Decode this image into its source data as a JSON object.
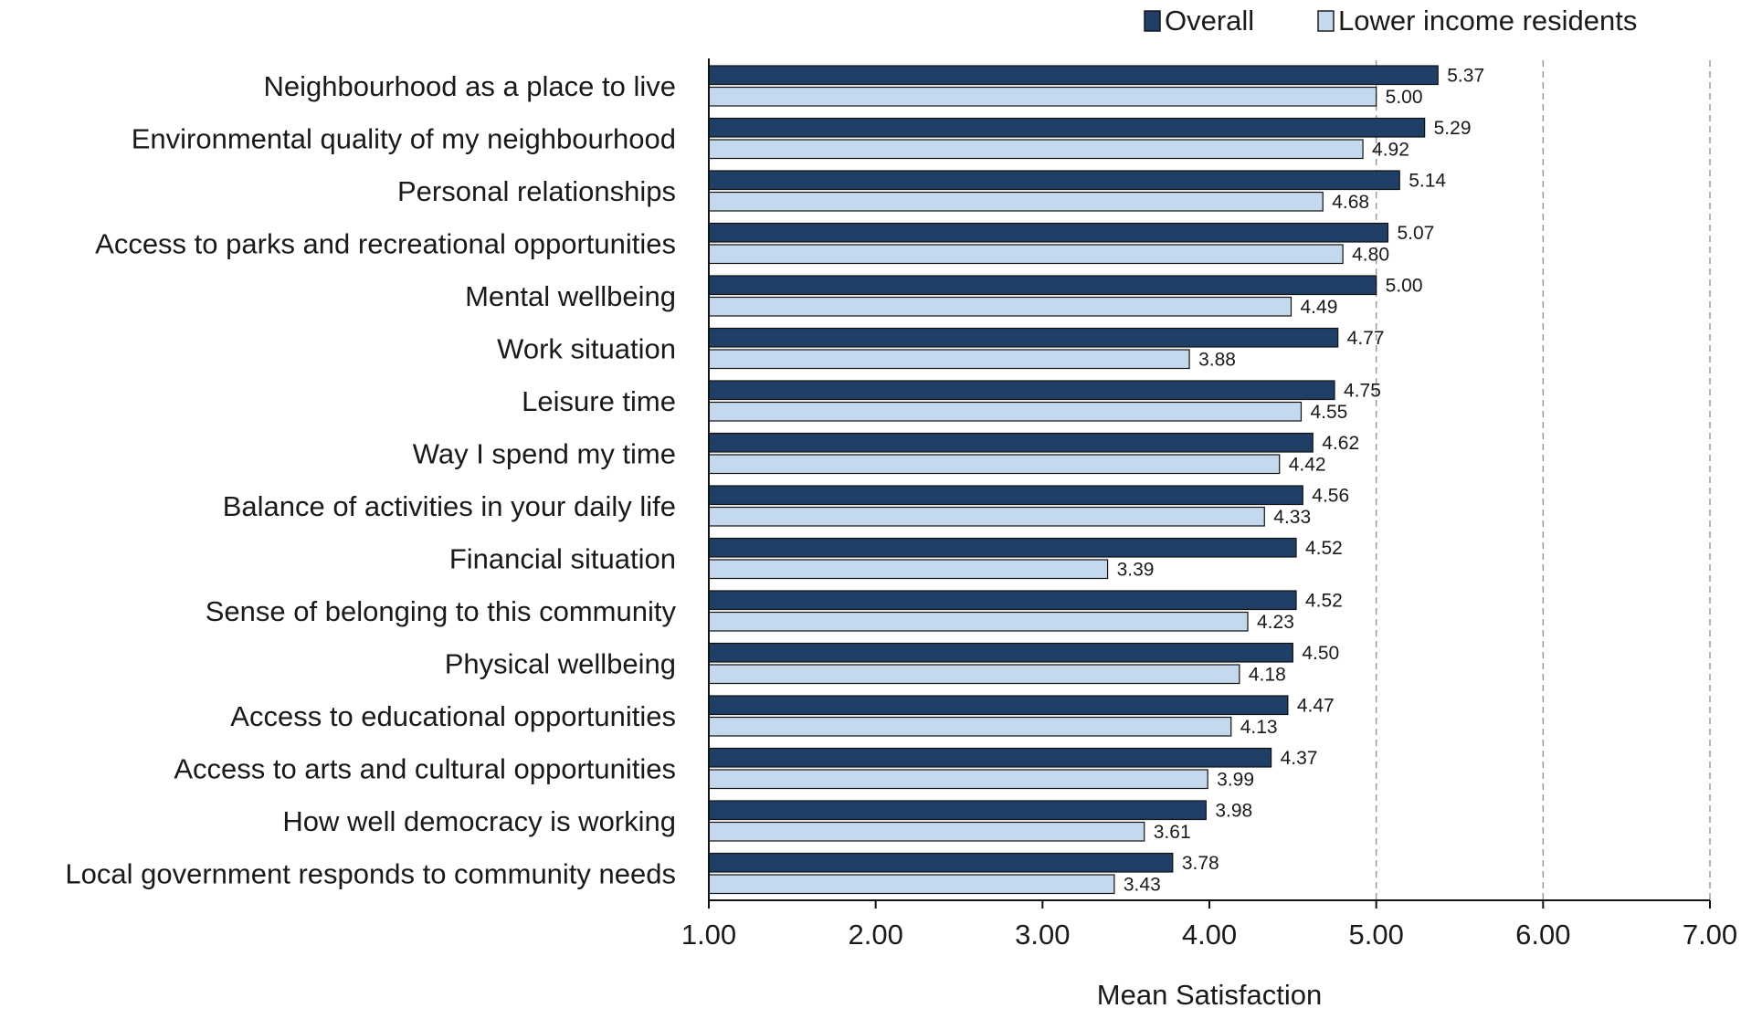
{
  "chart_data": {
    "type": "bar",
    "orientation": "horizontal",
    "title": "",
    "xlabel": "Mean Satisfaction",
    "ylabel": "",
    "xlim": [
      1.0,
      7.0
    ],
    "xticks": [
      1.0,
      2.0,
      3.0,
      4.0,
      5.0,
      6.0,
      7.0
    ],
    "tick_labels": [
      "1.00",
      "2.00",
      "3.00",
      "4.00",
      "5.00",
      "6.00",
      "7.00"
    ],
    "grid": "vertical dashed gridlines at 5.00, 6.00 and 7.00",
    "legend_position": "top-right",
    "categories": [
      "Neighbourhood as a place to live",
      "Environmental quality of my neighbourhood",
      "Personal relationships",
      "Access to parks and recreational opportunities",
      "Mental wellbeing",
      "Work situation",
      "Leisure time",
      "Way I spend my time",
      "Balance of activities in your daily life",
      "Financial situation",
      "Sense of belonging to this community",
      "Physical wellbeing",
      "Access to educational opportunities",
      "Access to arts and cultural opportunities",
      "How well democracy is working",
      "Local government responds to community needs"
    ],
    "series": [
      {
        "name": "Overall",
        "color": "#1f3f66",
        "values": [
          5.37,
          5.29,
          5.14,
          5.07,
          5.0,
          4.77,
          4.75,
          4.62,
          4.56,
          4.52,
          4.52,
          4.5,
          4.47,
          4.37,
          3.98,
          3.78
        ],
        "labels": [
          "5.37",
          "5.29",
          "5.14",
          "5.07",
          "5.00",
          "4.77",
          "4.75",
          "4.62",
          "4.56",
          "4.52",
          "4.52",
          "4.50",
          "4.47",
          "4.37",
          "3.98",
          "3.78"
        ]
      },
      {
        "name": "Lower income residents",
        "color": "#c5d9ee",
        "values": [
          5.0,
          4.92,
          4.68,
          4.8,
          4.49,
          3.88,
          4.55,
          4.42,
          4.33,
          3.39,
          4.23,
          4.18,
          4.13,
          3.99,
          3.61,
          3.43
        ],
        "labels": [
          "5.00",
          "4.92",
          "4.68",
          "4.80",
          "4.49",
          "3.88",
          "4.55",
          "4.42",
          "4.33",
          "3.39",
          "4.23",
          "4.18",
          "4.13",
          "3.99",
          "3.61",
          "3.43"
        ]
      }
    ]
  }
}
